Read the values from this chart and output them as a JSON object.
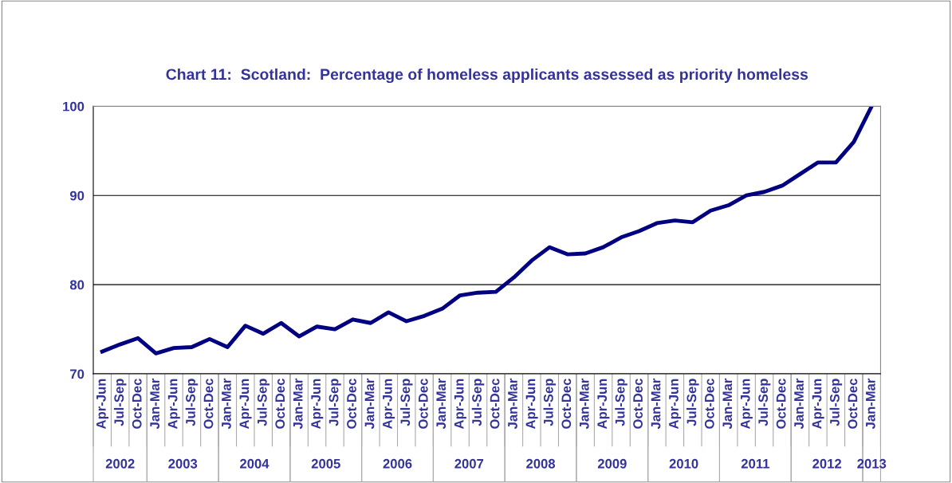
{
  "chart_data": {
    "type": "line",
    "title": "Chart 11:  Scotland:  Percentage of homeless applicants assessed as priority homeless",
    "categories": [
      "Apr-Jun",
      "Jul-Sep",
      "Oct-Dec",
      "Jan-Mar",
      "Apr-Jun",
      "Jul-Sep",
      "Oct-Dec",
      "Jan-Mar",
      "Apr-Jun",
      "Jul-Sep",
      "Oct-Dec",
      "Jan-Mar",
      "Apr-Jun",
      "Jul-Sep",
      "Oct-Dec",
      "Jan-Mar",
      "Apr-Jun",
      "Jul-Sep",
      "Oct-Dec",
      "Jan-Mar",
      "Apr-Jun",
      "Jul-Sep",
      "Oct-Dec",
      "Jan-Mar",
      "Apr-Jun",
      "Jul-Sep",
      "Oct-Dec",
      "Jan-Mar",
      "Apr-Jun",
      "Jul-Sep",
      "Oct-Dec",
      "Jan-Mar",
      "Apr-Jun",
      "Jul-Sep",
      "Oct-Dec",
      "Jan-Mar",
      "Apr-Jun",
      "Jul-Sep",
      "Oct-Dec",
      "Jan-Mar",
      "Apr-Jun",
      "Jul-Sep",
      "Oct-Dec",
      "Jan-Mar"
    ],
    "series": [
      {
        "color": "#000080",
        "values": [
          72.5,
          73.3,
          74.0,
          72.3,
          72.9,
          73.0,
          73.9,
          73.0,
          75.4,
          74.5,
          75.7,
          74.2,
          75.3,
          75.0,
          76.1,
          75.7,
          76.9,
          75.9,
          76.5,
          77.3,
          78.8,
          79.1,
          79.2,
          80.8,
          82.7,
          84.2,
          83.4,
          83.5,
          84.2,
          85.3,
          86.0,
          86.9,
          87.2,
          87.0,
          88.3,
          88.9,
          90.0,
          90.4,
          91.1,
          92.4,
          93.7,
          93.7,
          96.0,
          100.0
        ]
      }
    ],
    "annotations": [
      "2002",
      "2003",
      "2004",
      "2005",
      "2006",
      "2007",
      "2008",
      "2009",
      "2010",
      "2011",
      "2012",
      "2013"
    ],
    "ylim": [
      70,
      100
    ],
    "yticks": [
      70,
      80,
      90,
      100
    ],
    "grid": "y",
    "marker": "none",
    "line_style": "solid",
    "legend": false
  }
}
